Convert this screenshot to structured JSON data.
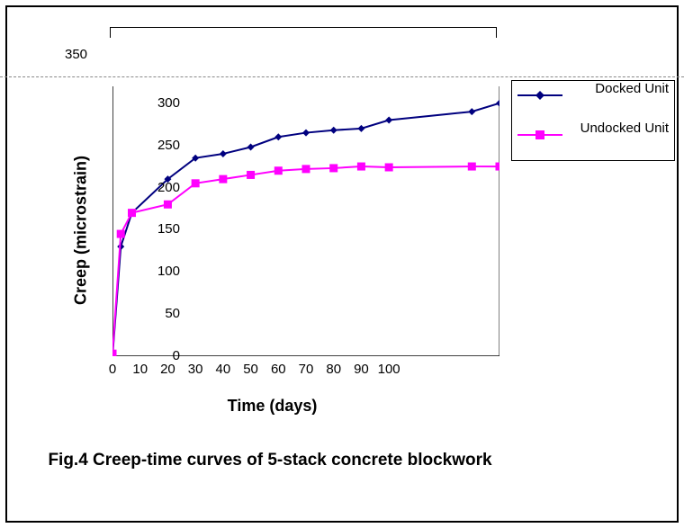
{
  "chart": {
    "type": "line",
    "title_caption": "Fig.4 Creep-time curves of 5-stack concrete blockwork",
    "x_label": "Time (days)",
    "y_label": "Creep (microstrain)",
    "x_ticks": [
      0,
      10,
      20,
      30,
      40,
      50,
      60,
      70,
      80,
      90,
      100
    ],
    "x_max_plot": 140,
    "y_ticks": [
      0,
      50,
      100,
      150,
      200,
      250,
      300
    ],
    "y_max_plot": 320,
    "top_extra_tick": "350",
    "background_color": "#ffffff",
    "axis_color": "#000000",
    "tick_font_size": 15,
    "label_font_size": 18,
    "caption_font_size": 19,
    "series": [
      {
        "name": "Docked Unit",
        "color": "#00007f",
        "marker": "diamond",
        "marker_size": 8,
        "line_width": 2,
        "points": [
          {
            "x": 0,
            "y": 0
          },
          {
            "x": 3,
            "y": 130
          },
          {
            "x": 7,
            "y": 170
          },
          {
            "x": 20,
            "y": 210
          },
          {
            "x": 30,
            "y": 235
          },
          {
            "x": 40,
            "y": 240
          },
          {
            "x": 50,
            "y": 248
          },
          {
            "x": 60,
            "y": 260
          },
          {
            "x": 70,
            "y": 265
          },
          {
            "x": 80,
            "y": 268
          },
          {
            "x": 90,
            "y": 270
          },
          {
            "x": 100,
            "y": 280
          },
          {
            "x": 130,
            "y": 290
          },
          {
            "x": 140,
            "y": 300
          }
        ]
      },
      {
        "name": "Undocked Unit",
        "color": "#ff00ff",
        "marker": "square",
        "marker_size": 9,
        "line_width": 2,
        "points": [
          {
            "x": 0,
            "y": 3
          },
          {
            "x": 3,
            "y": 145
          },
          {
            "x": 7,
            "y": 170
          },
          {
            "x": 20,
            "y": 180
          },
          {
            "x": 30,
            "y": 205
          },
          {
            "x": 40,
            "y": 210
          },
          {
            "x": 50,
            "y": 215
          },
          {
            "x": 60,
            "y": 220
          },
          {
            "x": 70,
            "y": 222
          },
          {
            "x": 80,
            "y": 223
          },
          {
            "x": 90,
            "y": 225
          },
          {
            "x": 100,
            "y": 224
          },
          {
            "x": 130,
            "y": 225
          },
          {
            "x": 140,
            "y": 225
          }
        ]
      }
    ],
    "legend": {
      "border_color": "#000000",
      "font_size": 15
    }
  }
}
